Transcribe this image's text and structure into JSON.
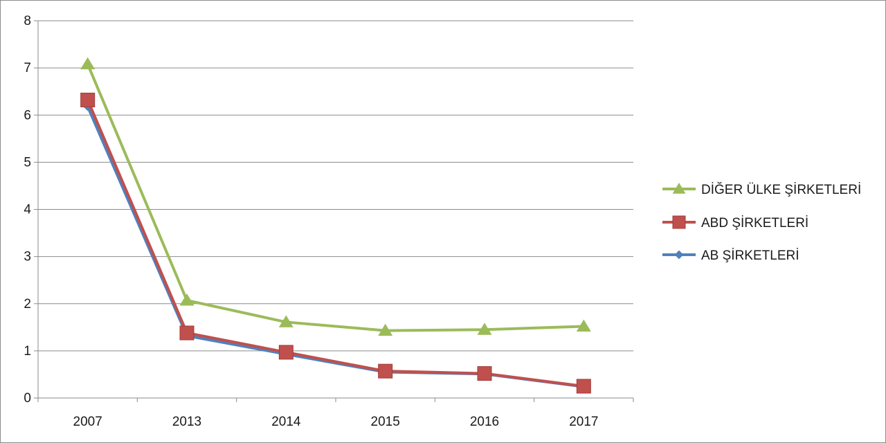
{
  "chart_data": {
    "type": "line",
    "categories": [
      "2007",
      "2013",
      "2014",
      "2015",
      "2016",
      "2017"
    ],
    "ylim": [
      0,
      8
    ],
    "yticks": [
      0,
      1,
      2,
      3,
      4,
      5,
      6,
      7,
      8
    ],
    "grid": true,
    "legend_position": "right",
    "series": [
      {
        "name": "DİĞER ÜLKE ŞİRKETLERİ",
        "color": "#9bbb59",
        "marker": "triangle",
        "values": [
          7.08,
          2.07,
          1.61,
          1.43,
          1.45,
          1.52
        ]
      },
      {
        "name": "ABD ŞİRKETLERİ",
        "color": "#c0504d",
        "marker": "square",
        "values": [
          6.32,
          1.38,
          0.97,
          0.57,
          0.52,
          0.25
        ]
      },
      {
        "name": "AB ŞİRKETLERİ",
        "color": "#4f81bd",
        "marker": "diamond",
        "values": [
          6.18,
          1.32,
          0.93,
          0.55,
          0.51,
          0.24
        ]
      }
    ]
  }
}
